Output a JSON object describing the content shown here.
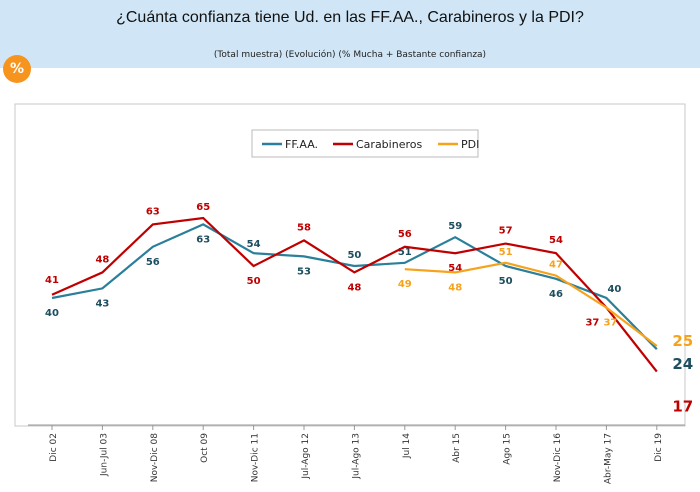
{
  "header": {
    "title": "¿Cuánta confianza tiene Ud. en las FF.AA., Carabineros y la PDI?",
    "subtitle": "(Total muestra) (Evolución) (% Mucha + Bastante confianza)",
    "badge": "%"
  },
  "chart_data": {
    "type": "line",
    "title": "¿Cuánta confianza tiene Ud. en las FF.AA., Carabineros y la PDI?",
    "categories": [
      "Dic 02",
      "Jun-Jul 03",
      "Nov-Dic 08",
      "Oct 09",
      "Nov-Dic 11",
      "Jul-Ago 12",
      "Jul-Ago 13",
      "Jul 14",
      "Abr 15",
      "Ago 15",
      "Nov-Dic 16",
      "Abr-May 17",
      "Dic 19"
    ],
    "series": [
      {
        "name": "FF.AA.",
        "color": "#2a7f9a",
        "label_color": "#1d4e5f",
        "values": [
          40,
          43,
          56,
          63,
          54,
          53,
          50,
          51,
          59,
          50,
          46,
          40,
          24
        ]
      },
      {
        "name": "Carabineros",
        "color": "#c00000",
        "label_color": "#c00000",
        "values": [
          41,
          48,
          63,
          65,
          50,
          58,
          48,
          56,
          54,
          57,
          54,
          37,
          17
        ]
      },
      {
        "name": "PDI",
        "color": "#f7a21b",
        "label_color": "#f7a21b",
        "values": [
          null,
          null,
          null,
          null,
          null,
          null,
          null,
          49,
          48,
          51,
          47,
          37,
          25
        ]
      }
    ],
    "legend": "top-center",
    "grid": false
  }
}
